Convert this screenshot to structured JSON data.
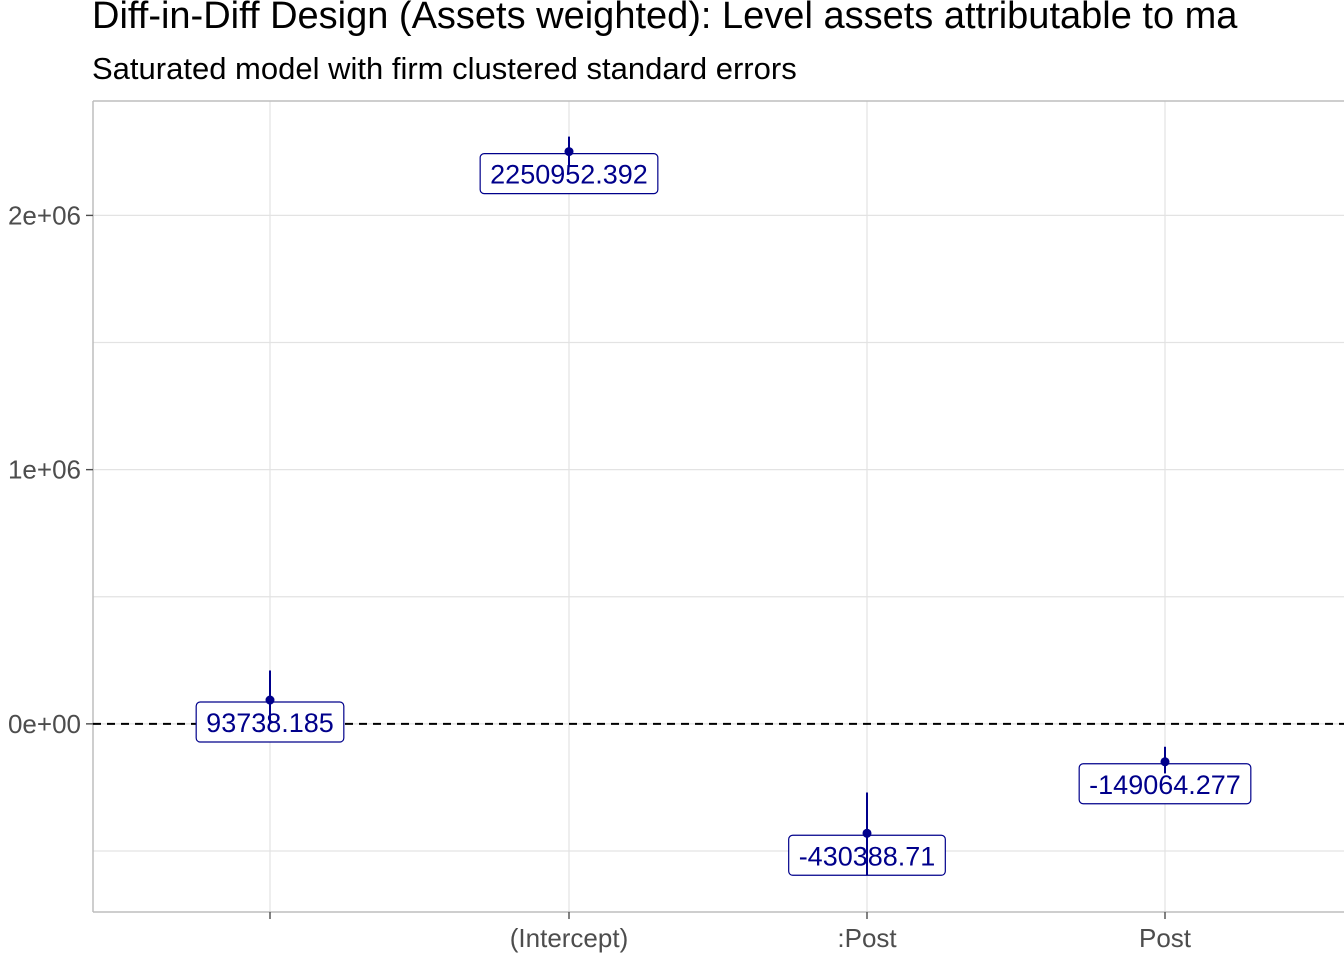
{
  "chart_data": {
    "type": "scatter",
    "title": "Diff-in-Diff Design (Assets weighted): Level assets attributable to ma",
    "subtitle": "Saturated model with firm clustered standard errors",
    "xlabel": "",
    "ylabel": "",
    "categories": [
      "",
      "(Intercept)",
      ":Post",
      "Post"
    ],
    "points": [
      {
        "category": "",
        "estimate": 93738.185,
        "ci_low": 0,
        "ci_high": 210000,
        "label": "93738.185"
      },
      {
        "category": "(Intercept)",
        "estimate": 2250952.392,
        "ci_low": 2190000,
        "ci_high": 2310000,
        "label": "2250952.392"
      },
      {
        "category": ":Post",
        "estimate": -430388.71,
        "ci_low": -595000,
        "ci_high": -270000,
        "label": "-430388.71"
      },
      {
        "category": "Post",
        "estimate": -149064.277,
        "ci_low": -195000,
        "ci_high": -90000,
        "label": "-149064.277"
      }
    ],
    "y_ticks": [
      {
        "value": 0,
        "label": "0e+00"
      },
      {
        "value": 1000000,
        "label": "1e+06"
      },
      {
        "value": 2000000,
        "label": "2e+06"
      }
    ],
    "ylim": [
      -740000,
      2450000
    ],
    "reference_line": {
      "value": 0,
      "style": "dashed"
    },
    "grid": true,
    "legend": "none",
    "point_color": "#00008b",
    "label_color": "#00008b"
  }
}
